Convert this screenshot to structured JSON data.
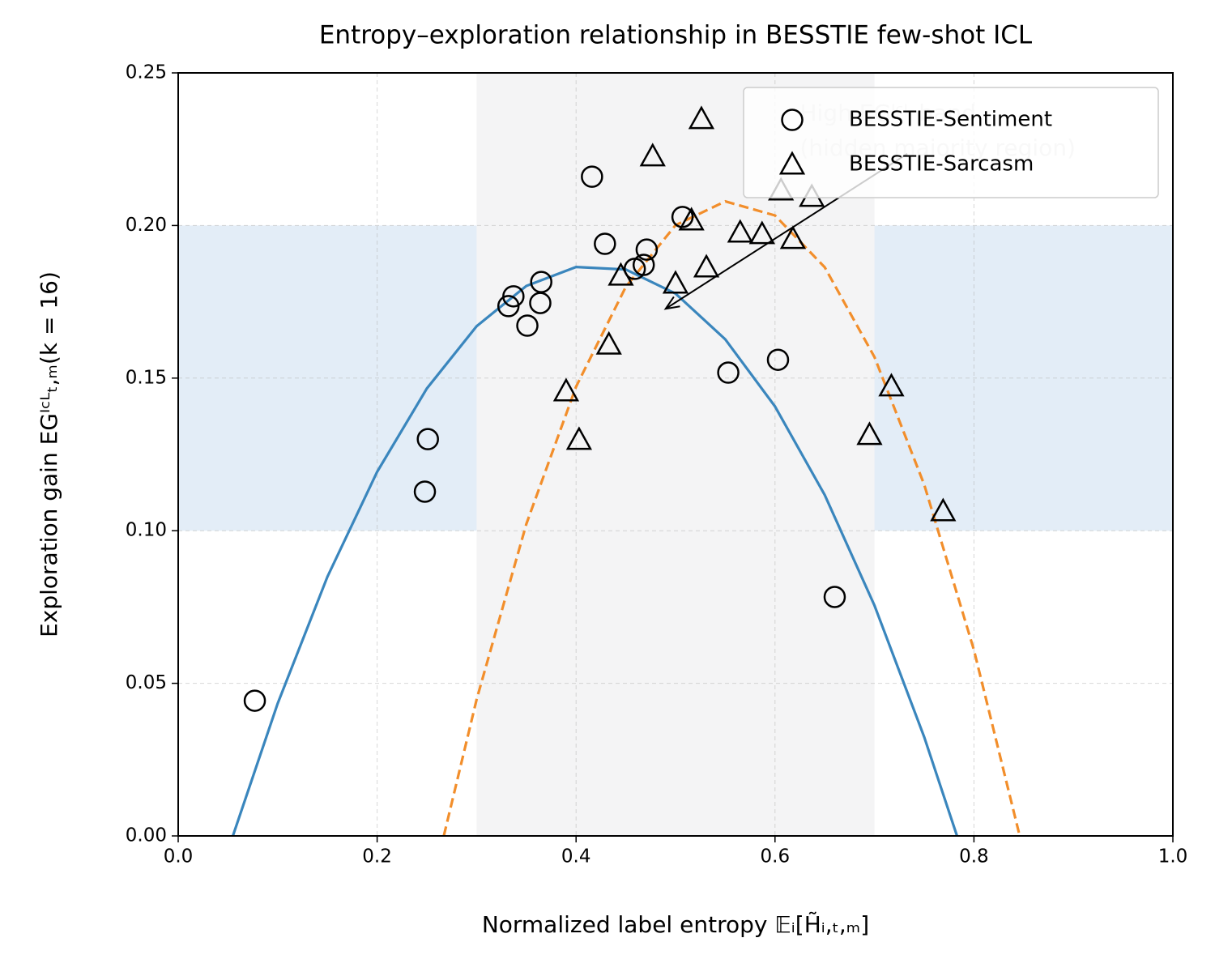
{
  "chart_data": {
    "type": "scatter",
    "title": "Entropy–exploration relationship in BESSTIE few-shot ICL",
    "x_label": "Normalized label entropy 𝔼ᵢ[H̃ᵢ,ₜ,ₘ]",
    "y_label": "Exploration gain EGᴵᶜᴸₜ,ₘ(k = 16)",
    "xlim": [
      0,
      1
    ],
    "ylim": [
      0,
      0.25
    ],
    "xticks": [
      {
        "value": 0,
        "label": "0.0"
      },
      {
        "value": 0.2,
        "label": "0.2"
      },
      {
        "value": 0.4,
        "label": "0.4"
      },
      {
        "value": 0.6,
        "label": "0.6"
      },
      {
        "value": 0.8,
        "label": "0.8"
      },
      {
        "value": 1,
        "label": "1.0"
      }
    ],
    "yticks": [
      {
        "value": 0,
        "label": "0.00"
      },
      {
        "value": 0.05,
        "label": "0.05"
      },
      {
        "value": 0.1,
        "label": "0.10"
      },
      {
        "value": 0.15,
        "label": "0.15"
      },
      {
        "value": 0.2,
        "label": "0.20"
      },
      {
        "value": 0.25,
        "label": "0.25"
      }
    ],
    "grid": true,
    "legend": "upper right",
    "shaded_y": [
      0.1,
      0.2
    ],
    "shaded_y_color": "#e3edf7",
    "shaded_x": [
      0.3,
      0.7
    ],
    "shaded_x_color": "#f4f4f5",
    "series": [
      {
        "name": "BESSTIE-Sentiment",
        "marker": "circle",
        "color": "#000000",
        "x": [
          0.077,
          0.248,
          0.251,
          0.332,
          0.337,
          0.351,
          0.364,
          0.365,
          0.416,
          0.429,
          0.459,
          0.468,
          0.471,
          0.507,
          0.553,
          0.603,
          0.66
        ],
        "values": [
          0.0443,
          0.1128,
          0.13,
          0.1736,
          0.1768,
          0.1672,
          0.1746,
          0.1815,
          0.216,
          0.194,
          0.1858,
          0.1871,
          0.1921,
          0.2028,
          0.1518,
          0.156,
          0.0783
        ]
      },
      {
        "name": "BESSTIE-Sarcasm",
        "marker": "triangle",
        "color": "#000000",
        "x": [
          0.526,
          0.477,
          0.606,
          0.637,
          0.516,
          0.565,
          0.587,
          0.618,
          0.531,
          0.445,
          0.5,
          0.433,
          0.39,
          0.403,
          0.717,
          0.695,
          0.769
        ],
        "values": [
          0.2349,
          0.2227,
          0.2115,
          0.2094,
          0.2017,
          0.1977,
          0.1972,
          0.1956,
          0.1863,
          0.1836,
          0.181,
          0.161,
          0.1457,
          0.1298,
          0.1473,
          0.1314,
          0.1064
        ]
      }
    ],
    "fits": [
      {
        "color": "#3a86bd",
        "dashed": false,
        "x": [
          0.055,
          0.1,
          0.15,
          0.2,
          0.25,
          0.3,
          0.35,
          0.4,
          0.45,
          0.5,
          0.55,
          0.6,
          0.65,
          0.7,
          0.75,
          0.783
        ],
        "values": [
          0,
          0.0434,
          0.0849,
          0.1193,
          0.1466,
          0.167,
          0.1802,
          0.1864,
          0.1856,
          0.1777,
          0.1627,
          0.1407,
          0.1117,
          0.0755,
          0.0324,
          0
        ]
      },
      {
        "color": "#f28e2b",
        "dashed": true,
        "x": [
          0.267,
          0.3,
          0.35,
          0.4,
          0.45,
          0.5,
          0.55,
          0.6,
          0.65,
          0.7,
          0.75,
          0.8,
          0.846
        ],
        "values": [
          0,
          0.0447,
          0.1022,
          0.1472,
          0.1799,
          0.2001,
          0.2079,
          0.2033,
          0.1863,
          0.1569,
          0.1151,
          0.0609,
          0
        ]
      }
    ],
    "annotation": {
      "lines": [
        "High EGᴵᶜᴸ band",
        "(hidden majority region)"
      ],
      "text_x": 0.625,
      "text_y": 0.2365,
      "arrow_from": [
        0.733,
        0.2235
      ],
      "arrow_to": [
        0.49,
        0.1727
      ]
    }
  }
}
